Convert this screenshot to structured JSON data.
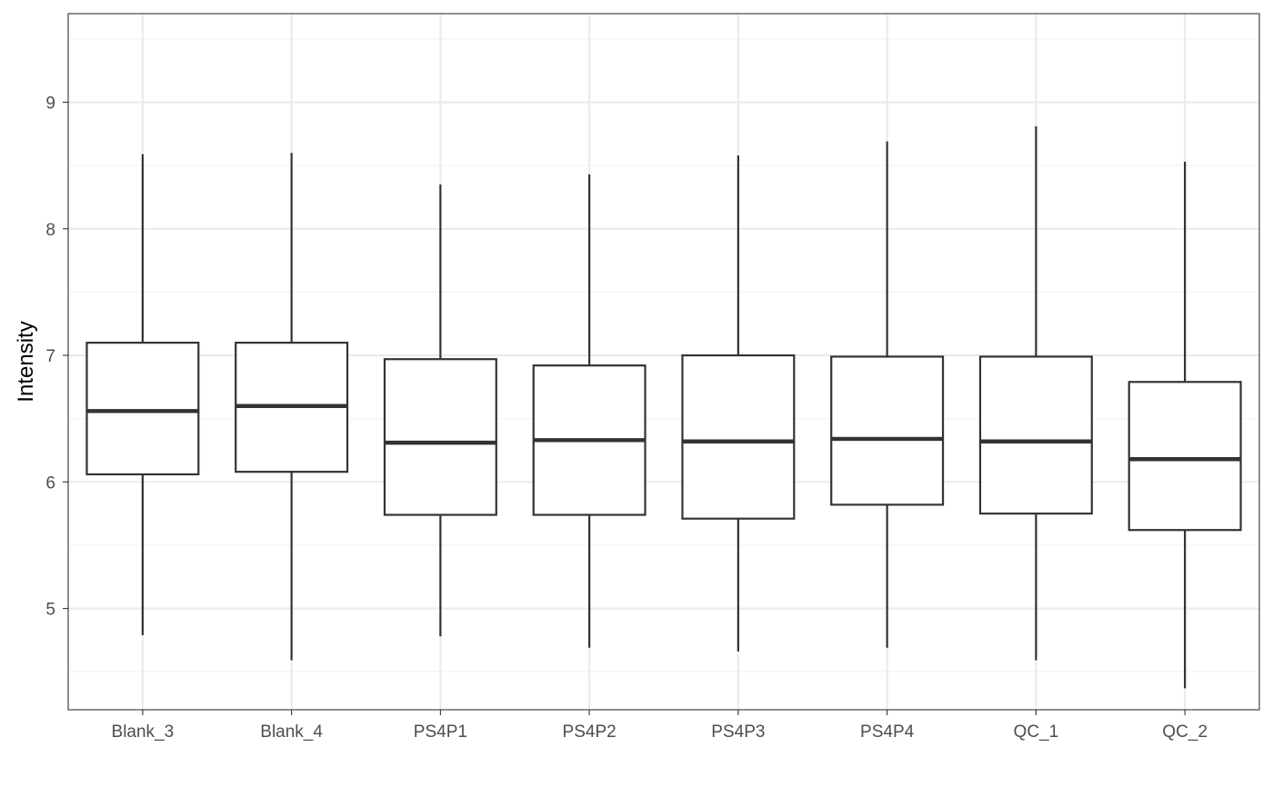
{
  "chart_data": {
    "type": "boxplot",
    "title": "",
    "xlabel": "",
    "ylabel": "Intensity",
    "ylim": [
      4.2,
      9.7
    ],
    "yticks": [
      5,
      6,
      7,
      8,
      9
    ],
    "grid": true,
    "theme": "bw",
    "colors": {
      "box_stroke": "#333333",
      "grid_major": "#ebebeb",
      "grid_minor": "#f2f2f2",
      "panel_border": "#333333",
      "tick_text": "#4d4d4d"
    },
    "categories": [
      "Blank_3",
      "Blank_4",
      "PS4P1",
      "PS4P2",
      "PS4P3",
      "PS4P4",
      "QC_1",
      "QC_2"
    ],
    "boxes": [
      {
        "category": "Blank_3",
        "whisker_low": 4.79,
        "q1": 6.06,
        "median": 6.56,
        "q3": 7.1,
        "whisker_high": 8.59
      },
      {
        "category": "Blank_4",
        "whisker_low": 4.59,
        "q1": 6.08,
        "median": 6.6,
        "q3": 7.1,
        "whisker_high": 8.6
      },
      {
        "category": "PS4P1",
        "whisker_low": 4.78,
        "q1": 5.74,
        "median": 6.31,
        "q3": 6.97,
        "whisker_high": 8.35
      },
      {
        "category": "PS4P2",
        "whisker_low": 4.69,
        "q1": 5.74,
        "median": 6.33,
        "q3": 6.92,
        "whisker_high": 8.43
      },
      {
        "category": "PS4P3",
        "whisker_low": 4.66,
        "q1": 5.71,
        "median": 6.32,
        "q3": 7.0,
        "whisker_high": 8.58
      },
      {
        "category": "PS4P4",
        "whisker_low": 4.69,
        "q1": 5.82,
        "median": 6.34,
        "q3": 6.99,
        "whisker_high": 8.69
      },
      {
        "category": "QC_1",
        "whisker_low": 4.59,
        "q1": 5.75,
        "median": 6.32,
        "q3": 6.99,
        "whisker_high": 8.81
      },
      {
        "category": "QC_2",
        "whisker_low": 4.37,
        "q1": 5.62,
        "median": 6.18,
        "q3": 6.79,
        "whisker_high": 8.53
      }
    ]
  }
}
